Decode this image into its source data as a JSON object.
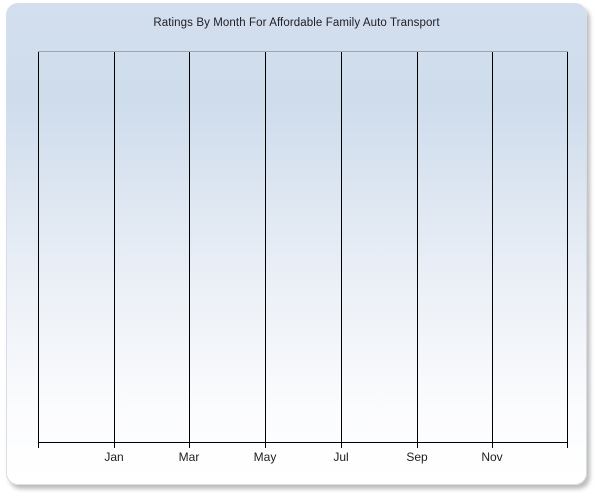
{
  "window": {
    "background": "#ffffff"
  },
  "colors": {
    "window_background": "#ffffff",
    "panel_gradient_top": "#d3dfee",
    "panel_gradient_mid": "#cedcec",
    "panel_gradient_lower": "#e9eef6",
    "panel_gradient_bottom": "#ffffff",
    "panel_border": "#d8dee7",
    "panel_shadow": "#bdbdbd",
    "plot_top_border": "#9ea4ad",
    "axis_line": "#000000",
    "gridline": "#000000",
    "title_text": "#202028",
    "axis_label_text": "#1d1d22"
  },
  "chart_data": {
    "type": "bar",
    "title": "Ratings By Month For Affordable Family Auto Transport",
    "xlabel": "",
    "ylabel": "",
    "categories": [
      "Jan",
      "Mar",
      "May",
      "Jul",
      "Sep",
      "Nov"
    ],
    "values": [],
    "series": [],
    "y_tick_labels": [],
    "grid": "vertical-only",
    "gridline_count": 8,
    "legend_position": "none",
    "plot_state": "empty - no data points rendered"
  }
}
